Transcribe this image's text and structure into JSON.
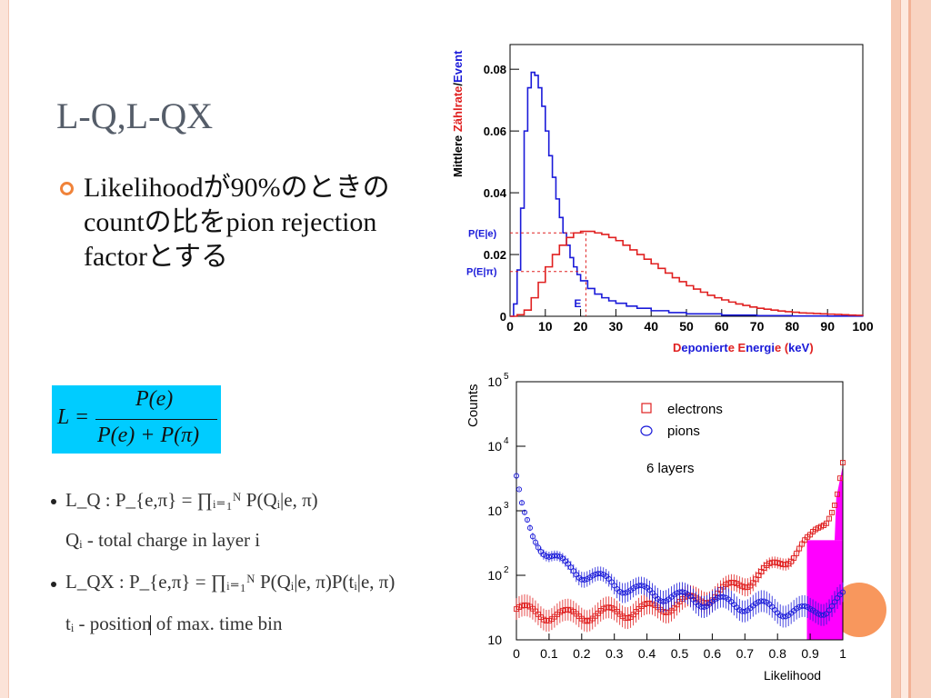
{
  "slide": {
    "title": "L-Q,L-QX",
    "bullet_text": "Likelihoodが90%のときのcountの比をpion rejection factorとする",
    "formula": {
      "lhs": "L =",
      "numerator": "P(e)",
      "denominator": "P(e) + P(π)"
    },
    "math": {
      "lq": "L_Q : P_{e,π} = ∏_{i=1}^{N} P(Q_i|e,π)",
      "lq_display": "L_Q : P_{e,π} = ∏ᵢ₌₁ᴺ P(Qᵢ|e, π)",
      "qi_display": "Qᵢ - total charge in layer i",
      "lqx_display": "L_QX : P_{e,π} = ∏ᵢ₌₁ᴺ P(Qᵢ|e, π)P(tᵢ|e, π)",
      "ti_display": "tᵢ - position of max. time bin"
    },
    "colors": {
      "accent_orange": "#f0833a",
      "formula_bg": "#00ccff",
      "title": "#555d69"
    }
  },
  "chart_data": [
    {
      "type": "line",
      "ylabel_parts": [
        "Mittlere ",
        "Zählrate",
        "/",
        "Event"
      ],
      "xlabel_parts": [
        "D",
        "eponiert",
        "e ",
        "E",
        "nergi",
        "e (",
        "keV",
        ")"
      ],
      "x_ticks": [
        "0",
        "10",
        "20",
        "30",
        "40",
        "50",
        "60",
        "70",
        "80",
        "90",
        "100"
      ],
      "y_ticks": [
        "0",
        "0.02",
        "0.04",
        "0.06",
        "0.08"
      ],
      "xlim": [
        0,
        100
      ],
      "ylim": [
        0,
        0.088
      ],
      "annotations": {
        "pe": "P(E|e)",
        "ppi": "P(E|π)",
        "e": "E"
      },
      "marker": {
        "x": 21.5,
        "pe": 0.027,
        "ppi": 0.0145
      },
      "series": [
        {
          "color": "#1a1ad9",
          "x": [
            0,
            1,
            2,
            3,
            4,
            5,
            6,
            7,
            8,
            9,
            10,
            11,
            12,
            13,
            14,
            15,
            16,
            17,
            18,
            19,
            20,
            22,
            24,
            26,
            28,
            30,
            33,
            36,
            40,
            45,
            50,
            60,
            70,
            80,
            90,
            100
          ],
          "y": [
            0,
            0.004,
            0.015,
            0.035,
            0.06,
            0.074,
            0.079,
            0.078,
            0.074,
            0.068,
            0.06,
            0.052,
            0.045,
            0.038,
            0.032,
            0.027,
            0.023,
            0.019,
            0.016,
            0.0135,
            0.0115,
            0.009,
            0.0072,
            0.006,
            0.005,
            0.0042,
            0.0033,
            0.0026,
            0.0018,
            0.0012,
            0.0008,
            0.0004,
            0.0002,
            0.0001,
            5e-05,
            0
          ]
        },
        {
          "color": "#e02020",
          "x": [
            0,
            2,
            4,
            6,
            8,
            10,
            12,
            14,
            16,
            18,
            20,
            22,
            24,
            26,
            28,
            30,
            32,
            34,
            36,
            38,
            40,
            42,
            44,
            46,
            48,
            50,
            52,
            54,
            56,
            58,
            60,
            62,
            64,
            66,
            68,
            70,
            72,
            74,
            76,
            78,
            80,
            82,
            84,
            86,
            88,
            90,
            92,
            94,
            96,
            98,
            100
          ],
          "y": [
            0,
            0.0005,
            0.002,
            0.006,
            0.011,
            0.016,
            0.02,
            0.023,
            0.0255,
            0.027,
            0.0275,
            0.0275,
            0.027,
            0.0265,
            0.0255,
            0.0245,
            0.023,
            0.0215,
            0.02,
            0.0185,
            0.017,
            0.0155,
            0.014,
            0.0125,
            0.0112,
            0.0099,
            0.0088,
            0.0078,
            0.0068,
            0.006,
            0.0053,
            0.0046,
            0.004,
            0.0035,
            0.003,
            0.0026,
            0.0023,
            0.002,
            0.0017,
            0.0015,
            0.0013,
            0.0011,
            0.001,
            0.0009,
            0.0008,
            0.0007,
            0.0006,
            0.0005,
            0.0004,
            0.0003,
            0.0002
          ]
        }
      ]
    },
    {
      "type": "scatter",
      "ylabel": "Counts",
      "xlabel": "Likelihood",
      "log_y": true,
      "ylim": [
        10,
        100000
      ],
      "xlim": [
        0,
        1
      ],
      "x_ticks": [
        "0",
        "0.1",
        "0.2",
        "0.3",
        "0.4",
        "0.5",
        "0.6",
        "0.7",
        "0.8",
        "0.9",
        "1"
      ],
      "y_tick_bases": [
        "10",
        "10",
        "10",
        "10",
        "10"
      ],
      "y_tick_exps": [
        "5",
        "4",
        "3",
        "2",
        ""
      ],
      "y_tick_values": [
        100000,
        10000,
        1000,
        100,
        10
      ],
      "legend": {
        "electrons": "electrons",
        "pions": "pions",
        "note": "6 layers"
      },
      "shaded_region": [
        0.89,
        1.0
      ],
      "shade_color": "#ff00ff",
      "series": [
        {
          "name": "electrons",
          "color": "#e02020",
          "marker": "square",
          "x": [
            0.0,
            0.05,
            0.1,
            0.15,
            0.2,
            0.25,
            0.3,
            0.35,
            0.4,
            0.45,
            0.5,
            0.55,
            0.6,
            0.65,
            0.7,
            0.75,
            0.8,
            0.85,
            0.9,
            0.95,
            0.98,
            1.0
          ],
          "y": [
            30,
            27,
            25,
            24,
            25,
            25,
            27,
            28,
            30,
            33,
            37,
            42,
            50,
            62,
            80,
            105,
            150,
            220,
            350,
            800,
            1600,
            5000
          ]
        },
        {
          "name": "pions",
          "color": "#1a1ad9",
          "marker": "circle",
          "x": [
            0.0,
            0.01,
            0.02,
            0.05,
            0.1,
            0.15,
            0.2,
            0.25,
            0.3,
            0.35,
            0.4,
            0.45,
            0.5,
            0.55,
            0.6,
            0.65,
            0.7,
            0.75,
            0.8,
            0.85,
            0.9,
            0.95,
            1.0
          ],
          "y": [
            3000,
            1600,
            900,
            420,
            210,
            140,
            110,
            90,
            75,
            62,
            55,
            50,
            46,
            42,
            40,
            37,
            35,
            33,
            30,
            28,
            27,
            32,
            45
          ]
        }
      ]
    }
  ]
}
